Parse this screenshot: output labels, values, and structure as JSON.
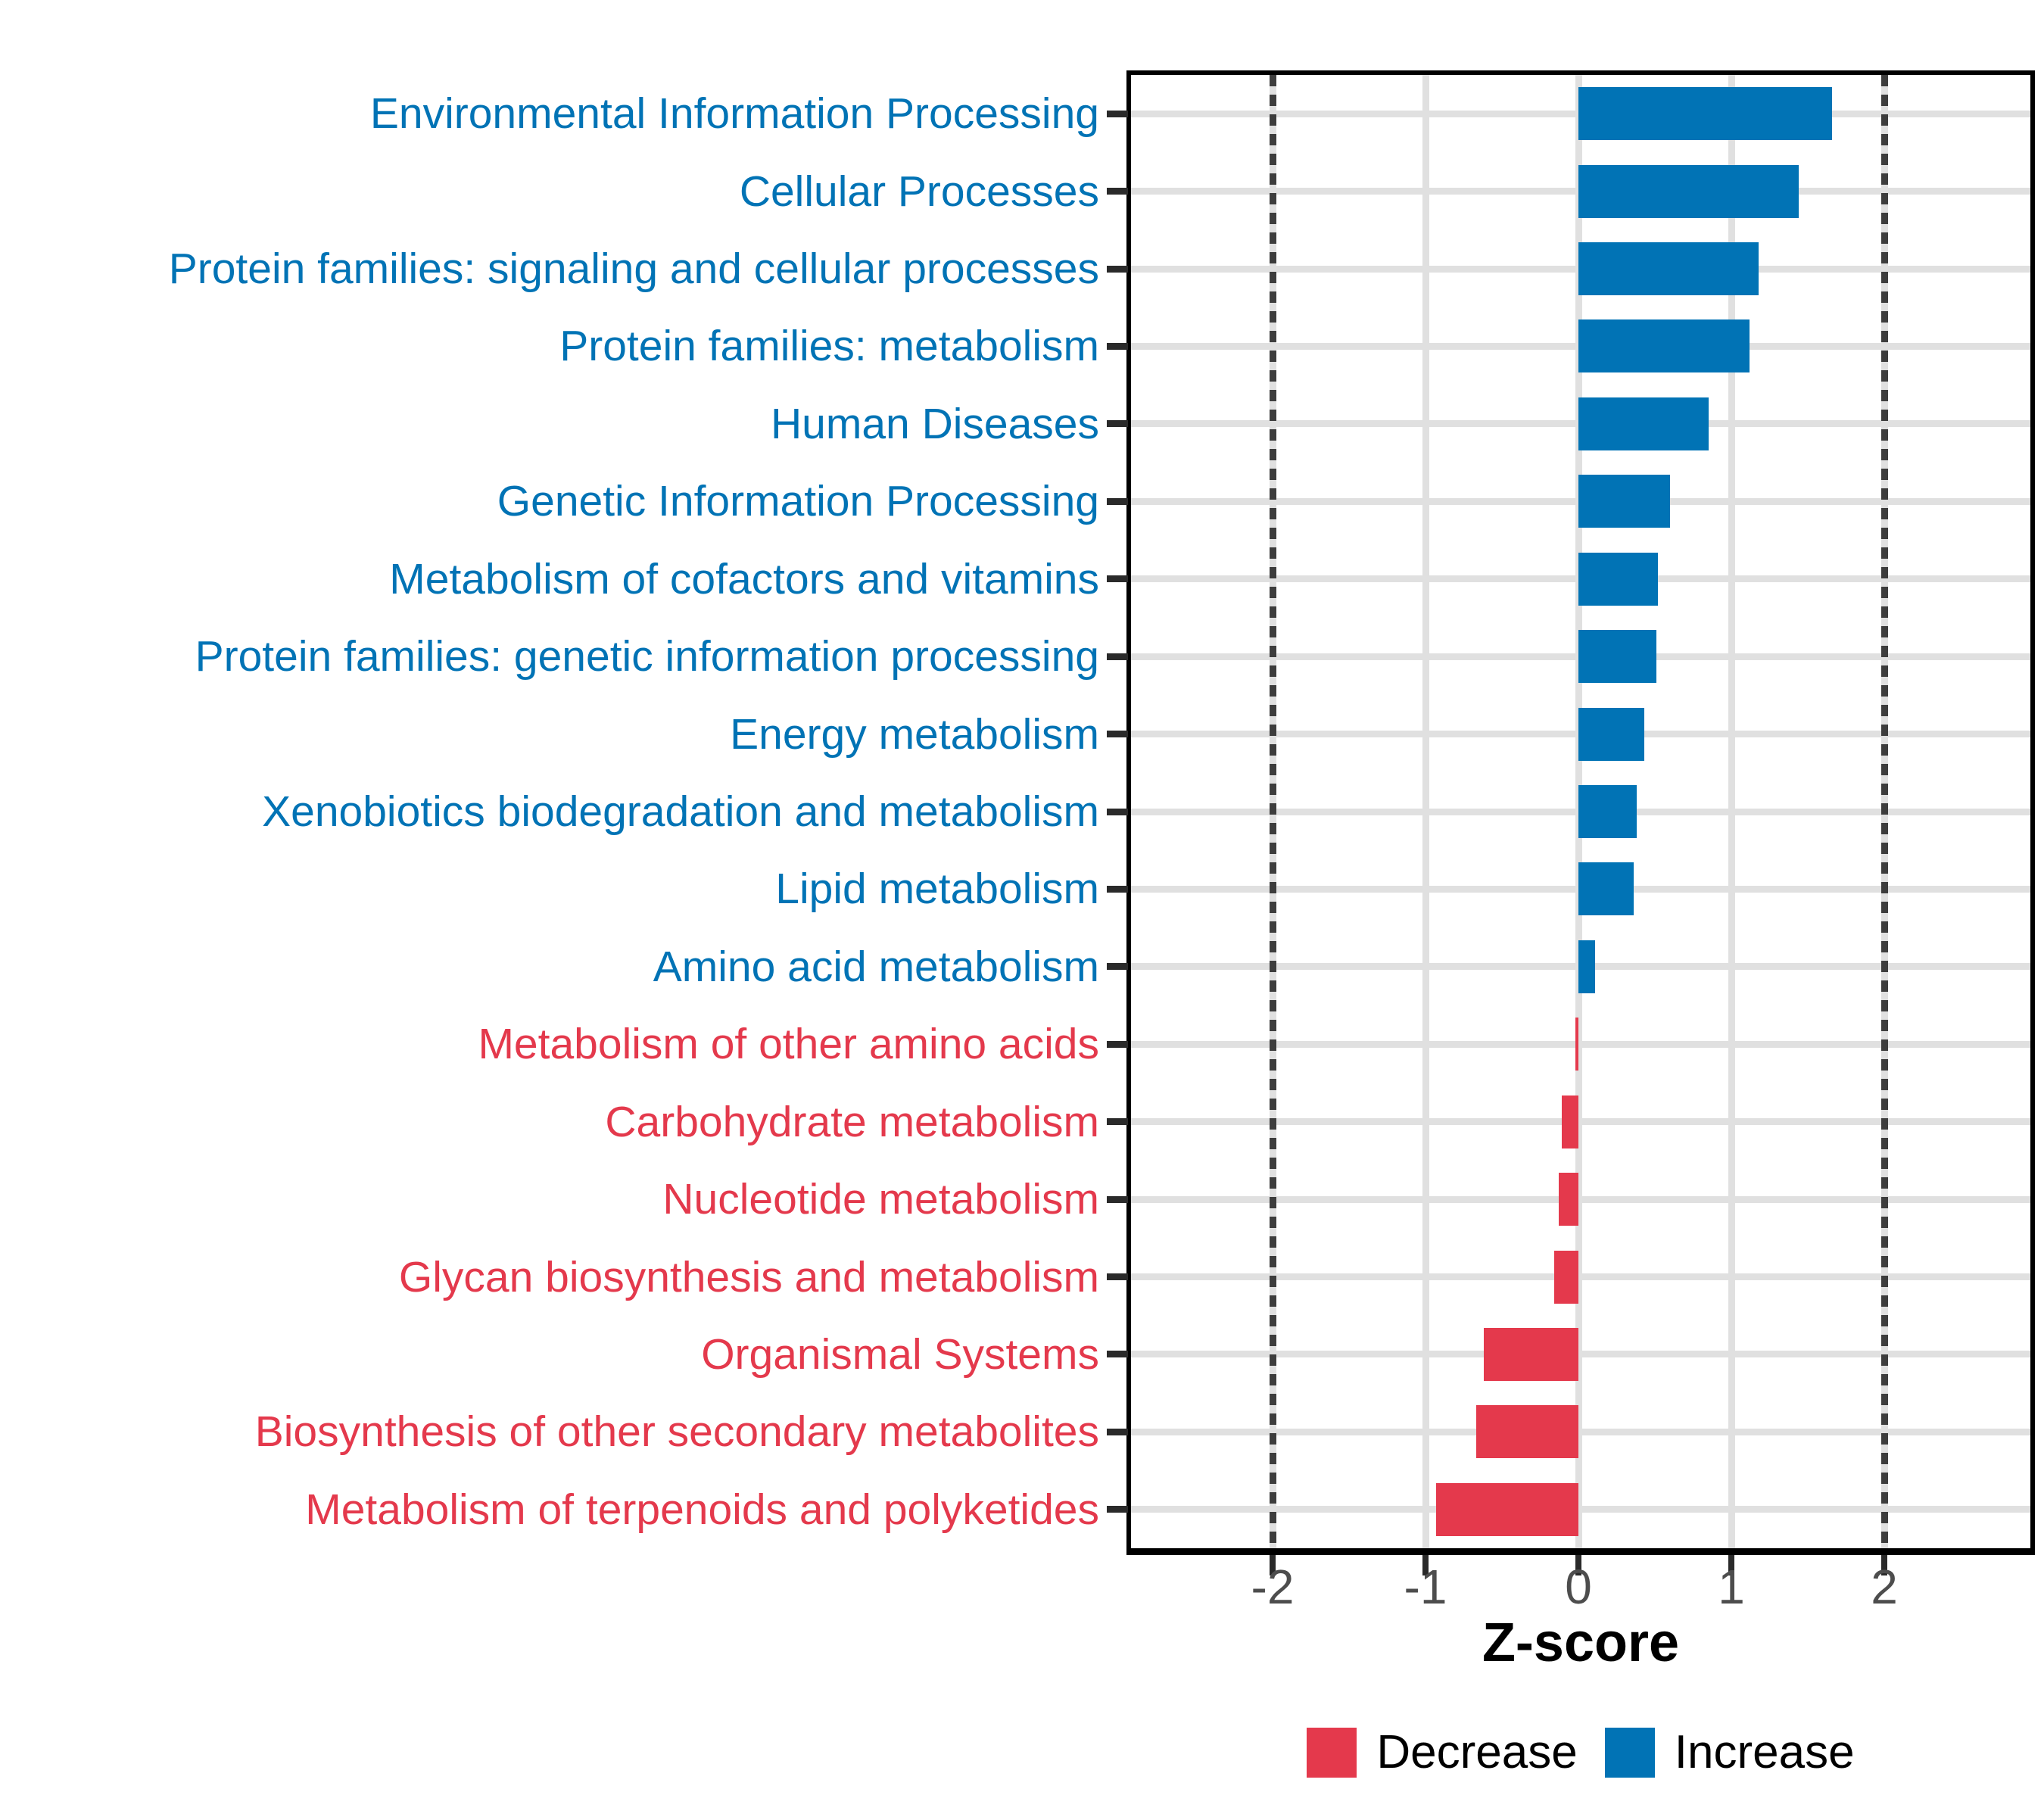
{
  "chart_data": {
    "type": "bar",
    "orientation": "horizontal",
    "title": "",
    "xlabel": "Z-score",
    "ylabel": "",
    "xlim": [
      -2.93,
      2.94
    ],
    "xticks": [
      -2,
      -1,
      0,
      1,
      2
    ],
    "reference_lines_x_dotted": [
      -2,
      2
    ],
    "grid": "light gray major gridlines; horizontal gridline per category; white panel; black border",
    "legend_position": "bottom-center",
    "categories": [
      "Environmental Information Processing",
      "Cellular Processes",
      "Protein families: signaling and cellular processes",
      "Protein families: metabolism",
      "Human Diseases",
      "Genetic Information Processing",
      "Metabolism of cofactors and vitamins",
      "Protein families: genetic information processing",
      "Energy metabolism",
      "Xenobiotics biodegradation and metabolism",
      "Lipid metabolism",
      "Amino acid metabolism",
      "Metabolism of other amino acids",
      "Carbohydrate metabolism",
      "Nucleotide metabolism",
      "Glycan biosynthesis and metabolism",
      "Organismal Systems",
      "Biosynthesis of other secondary metabolites",
      "Metabolism of terpenoids and polyketides"
    ],
    "values": [
      1.66,
      1.44,
      1.18,
      1.12,
      0.85,
      0.6,
      0.52,
      0.51,
      0.43,
      0.38,
      0.36,
      0.11,
      -0.02,
      -0.11,
      -0.13,
      -0.16,
      -0.62,
      -0.67,
      -0.93
    ],
    "directions": [
      "Increase",
      "Increase",
      "Increase",
      "Increase",
      "Increase",
      "Increase",
      "Increase",
      "Increase",
      "Increase",
      "Increase",
      "Increase",
      "Increase",
      "Decrease",
      "Decrease",
      "Decrease",
      "Decrease",
      "Decrease",
      "Decrease",
      "Decrease"
    ]
  },
  "legend": {
    "items": [
      {
        "label": "Decrease",
        "color": "#E4394C"
      },
      {
        "label": "Increase",
        "color": "#0173B5"
      }
    ]
  },
  "colors": {
    "increase": "#0173B5",
    "decrease": "#E4394C",
    "gridline": "#e0e0e0",
    "refline": "#3d3d3d",
    "axis_text": "#4d4d4d",
    "border": "#000000"
  }
}
